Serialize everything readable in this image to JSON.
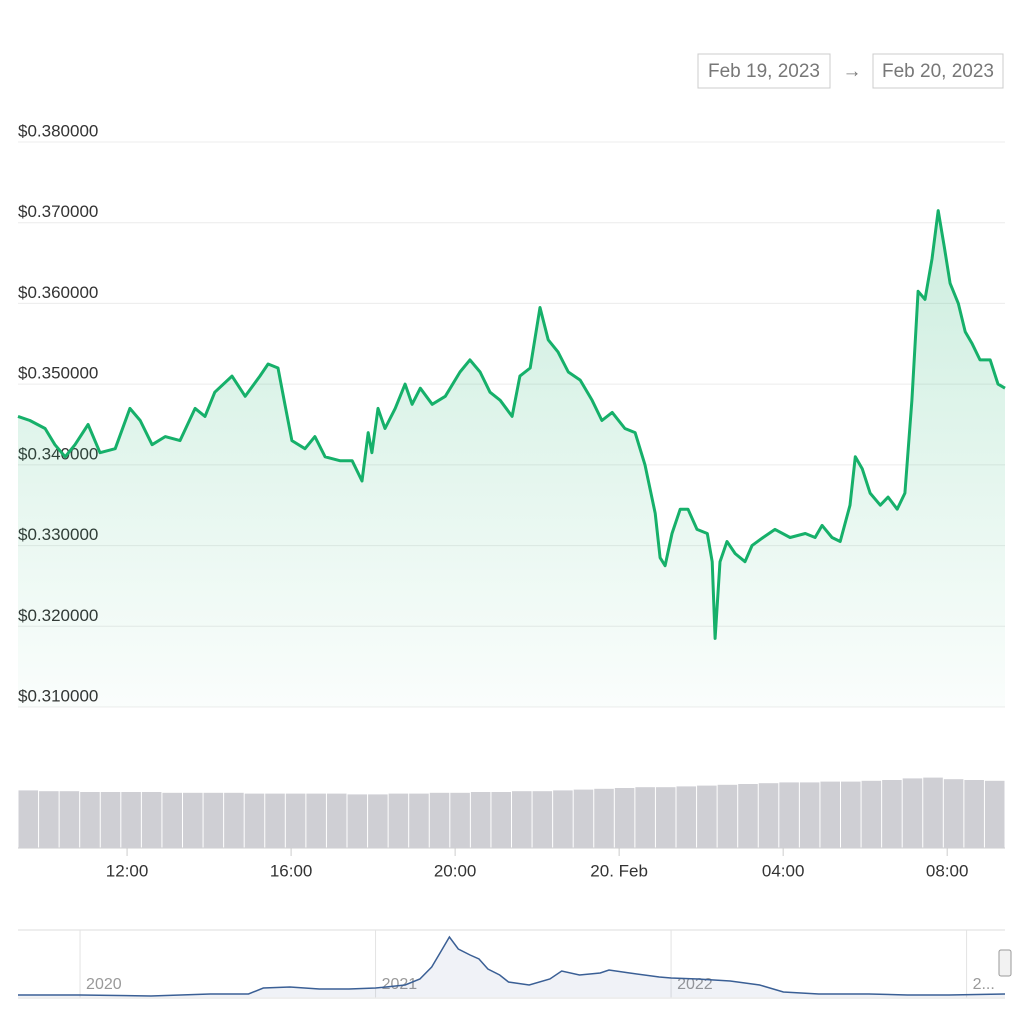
{
  "range": {
    "from": "Feb 19, 2023",
    "separator": "→",
    "to": "Feb 20, 2023"
  },
  "chart_data": [
    {
      "type": "line",
      "color": "#16b06a",
      "x": [
        9.34,
        9.63,
        10.0,
        10.24,
        10.49,
        10.73,
        11.05,
        11.34,
        11.71,
        12.07,
        12.32,
        12.61,
        12.93,
        13.29,
        13.66,
        13.9,
        14.14,
        14.56,
        14.88,
        15.24,
        15.44,
        15.68,
        15.85,
        16.02,
        16.34,
        16.58,
        16.83,
        17.2,
        17.49,
        17.73,
        17.88,
        17.97,
        18.12,
        18.29,
        18.54,
        18.78,
        18.95,
        19.15,
        19.44,
        19.76,
        20.12,
        20.36,
        20.61,
        20.85,
        21.1,
        21.39,
        21.58,
        21.83,
        22.07,
        22.27,
        22.51,
        22.76,
        23.05,
        23.34,
        23.58,
        23.83,
        24.14,
        24.39,
        24.63,
        24.88,
        25.0,
        25.12,
        25.29,
        25.49,
        25.68,
        25.9,
        26.15,
        26.27,
        26.34,
        26.46,
        26.63,
        26.83,
        27.07,
        27.24,
        27.51,
        27.8,
        28.17,
        28.54,
        28.78,
        28.95,
        29.19,
        29.39,
        29.63,
        29.76,
        29.93,
        30.12,
        30.37,
        30.56,
        30.78,
        30.97,
        31.14,
        31.29,
        31.46,
        31.63,
        31.78,
        31.93,
        32.07,
        32.27,
        32.44,
        32.61,
        32.8,
        33.05,
        33.24,
        33.41
      ],
      "values": [
        0.346,
        0.3455,
        0.3445,
        0.3425,
        0.341,
        0.3425,
        0.345,
        0.3415,
        0.342,
        0.347,
        0.3455,
        0.3425,
        0.3435,
        0.343,
        0.347,
        0.346,
        0.349,
        0.351,
        0.3485,
        0.351,
        0.3525,
        0.352,
        0.3475,
        0.343,
        0.342,
        0.3435,
        0.341,
        0.3405,
        0.3405,
        0.338,
        0.344,
        0.3415,
        0.347,
        0.3445,
        0.347,
        0.35,
        0.3475,
        0.3495,
        0.3475,
        0.3485,
        0.3515,
        0.353,
        0.3515,
        0.349,
        0.348,
        0.346,
        0.351,
        0.352,
        0.3595,
        0.3555,
        0.354,
        0.3515,
        0.3505,
        0.348,
        0.3455,
        0.3465,
        0.3445,
        0.344,
        0.34,
        0.334,
        0.3285,
        0.3275,
        0.3315,
        0.3345,
        0.3345,
        0.332,
        0.3315,
        0.328,
        0.3185,
        0.328,
        0.3305,
        0.329,
        0.328,
        0.33,
        0.331,
        0.332,
        0.331,
        0.3315,
        0.331,
        0.3325,
        0.331,
        0.3305,
        0.335,
        0.341,
        0.3395,
        0.3365,
        0.335,
        0.336,
        0.3345,
        0.3365,
        0.348,
        0.3615,
        0.3605,
        0.3655,
        0.3715,
        0.367,
        0.3625,
        0.36,
        0.3565,
        0.355,
        0.353,
        0.353,
        0.35,
        0.3495
      ],
      "xlim": [
        9.34,
        33.41
      ],
      "xticks": [
        {
          "value": 12,
          "label": "12:00"
        },
        {
          "value": 16,
          "label": "16:00"
        },
        {
          "value": 20,
          "label": "20:00"
        },
        {
          "value": 24,
          "label": "20. Feb"
        },
        {
          "value": 28,
          "label": "04:00"
        },
        {
          "value": 32,
          "label": "08:00"
        }
      ],
      "ylim": [
        0.31,
        0.38
      ],
      "yticks": [
        {
          "value": 0.31,
          "label": "$0.310000"
        },
        {
          "value": 0.32,
          "label": "$0.320000"
        },
        {
          "value": 0.33,
          "label": "$0.330000"
        },
        {
          "value": 0.34,
          "label": "$0.340000"
        },
        {
          "value": 0.35,
          "label": "$0.350000"
        },
        {
          "value": 0.36,
          "label": "$0.360000"
        },
        {
          "value": 0.37,
          "label": "$0.370000"
        },
        {
          "value": 0.38,
          "label": "$0.380000"
        }
      ],
      "grid": true,
      "volume": {
        "color": "#cfcfd4",
        "ylim": [
          0,
          100
        ],
        "values": [
          72,
          71,
          71,
          70,
          70,
          70,
          70,
          69,
          69,
          69,
          69,
          68,
          68,
          68,
          68,
          68,
          67,
          67,
          68,
          68,
          69,
          69,
          70,
          70,
          71,
          71,
          72,
          73,
          74,
          75,
          76,
          76,
          77,
          78,
          79,
          80,
          81,
          82,
          82,
          83,
          83,
          84,
          85,
          87,
          88,
          86,
          85,
          84
        ]
      }
    },
    {
      "type": "area",
      "color": "#3a5f95",
      "x": [
        2019.79,
        2020.0,
        2020.24,
        2020.44,
        2020.57,
        2020.62,
        2020.71,
        2020.81,
        2020.91,
        2021.0,
        2021.1,
        2021.15,
        2021.19,
        2021.22,
        2021.25,
        2021.28,
        2021.32,
        2021.35,
        2021.38,
        2021.42,
        2021.45,
        2021.52,
        2021.59,
        2021.63,
        2021.69,
        2021.76,
        2021.79,
        2021.86,
        2021.96,
        2022.0,
        2022.09,
        2022.2,
        2022.3,
        2022.38,
        2022.5,
        2022.67,
        2022.8,
        2022.94,
        2023.13
      ],
      "values": [
        2,
        2,
        1,
        3,
        3,
        9,
        10,
        8,
        8,
        9,
        12,
        18,
        30,
        45,
        60,
        48,
        42,
        38,
        28,
        22,
        15,
        12,
        18,
        26,
        22,
        24,
        27,
        24,
        20,
        19,
        18,
        16,
        12,
        5,
        3,
        3,
        2,
        2,
        3
      ],
      "xlim": [
        2019.79,
        2023.13
      ],
      "xticks": [
        2020,
        2021,
        2022,
        {
          "value": 2023,
          "label": "2..."
        }
      ],
      "ylim": [
        0,
        65
      ]
    }
  ]
}
